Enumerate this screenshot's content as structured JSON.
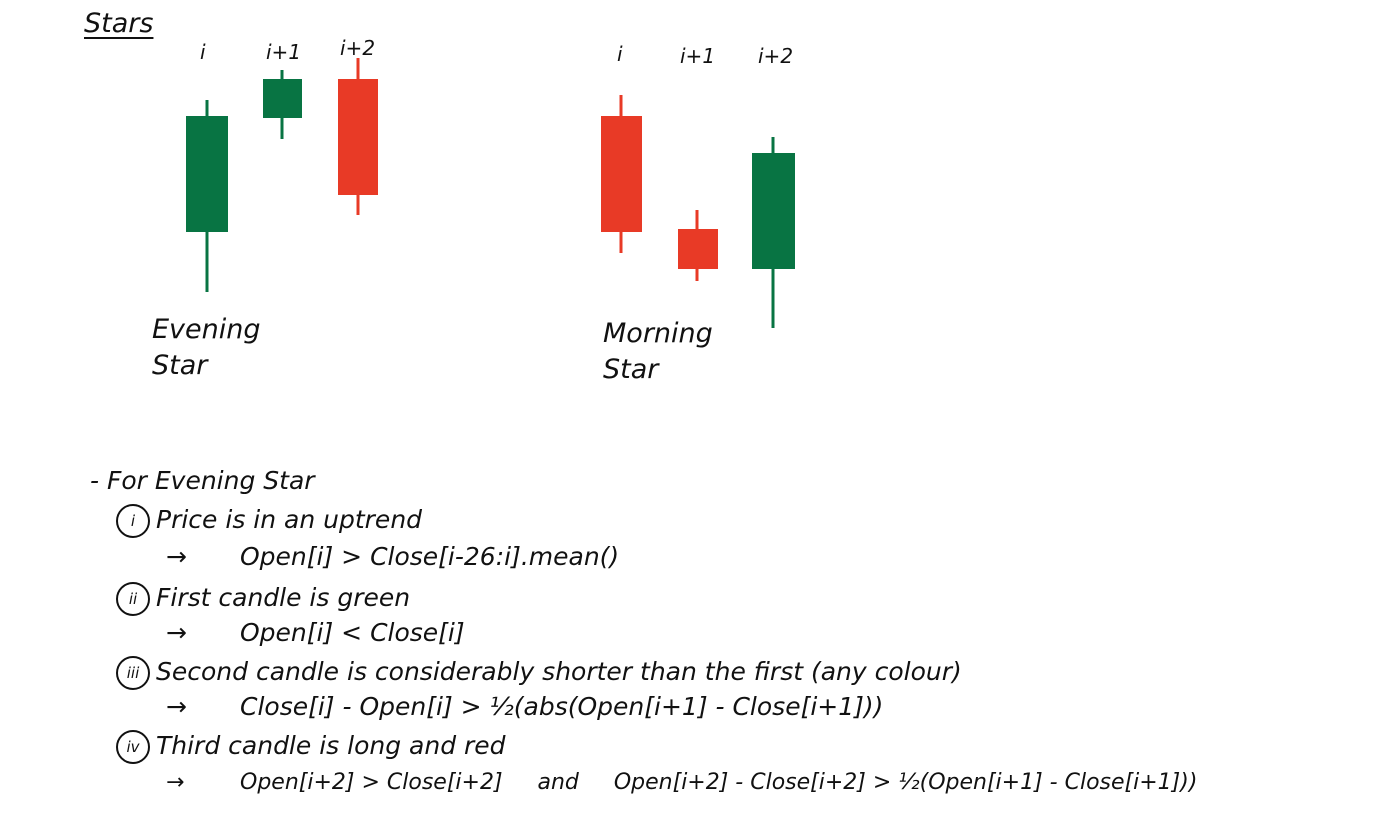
{
  "title": "Stars",
  "patterns": [
    {
      "name_line1": "Evening",
      "name_line2": "Star",
      "labels": [
        "i",
        "i+1",
        "i+2"
      ]
    },
    {
      "name_line1": "Morning",
      "name_line2": "Star",
      "labels": [
        "i",
        "i+1",
        "i+2"
      ]
    }
  ],
  "colors": {
    "bullish": "#087443",
    "bearish": "#e83a26"
  },
  "notes": {
    "bullet": "- For Evening Star",
    "items": [
      {
        "num": "i",
        "text": "Price is in an uptrend",
        "arrow": "→",
        "rule": "Open[i] > Close[i-26:i].mean()"
      },
      {
        "num": "ii",
        "text": "First candle is green",
        "arrow": "→",
        "rule": "Open[i] < Close[i]"
      },
      {
        "num": "iii",
        "text": "Second candle is considerably shorter than the first (any colour)",
        "arrow": "→",
        "rule": "Close[i] - Open[i] > ½(abs(Open[i+1] - Close[i+1]))"
      },
      {
        "num": "iv",
        "text": "Third candle is long and red",
        "arrow": "→",
        "rule": "Open[i+2] > Close[i+2]     and     Open[i+2] - Close[i+2] > ½(Open[i+1] - Close[i+1]))"
      }
    ]
  }
}
